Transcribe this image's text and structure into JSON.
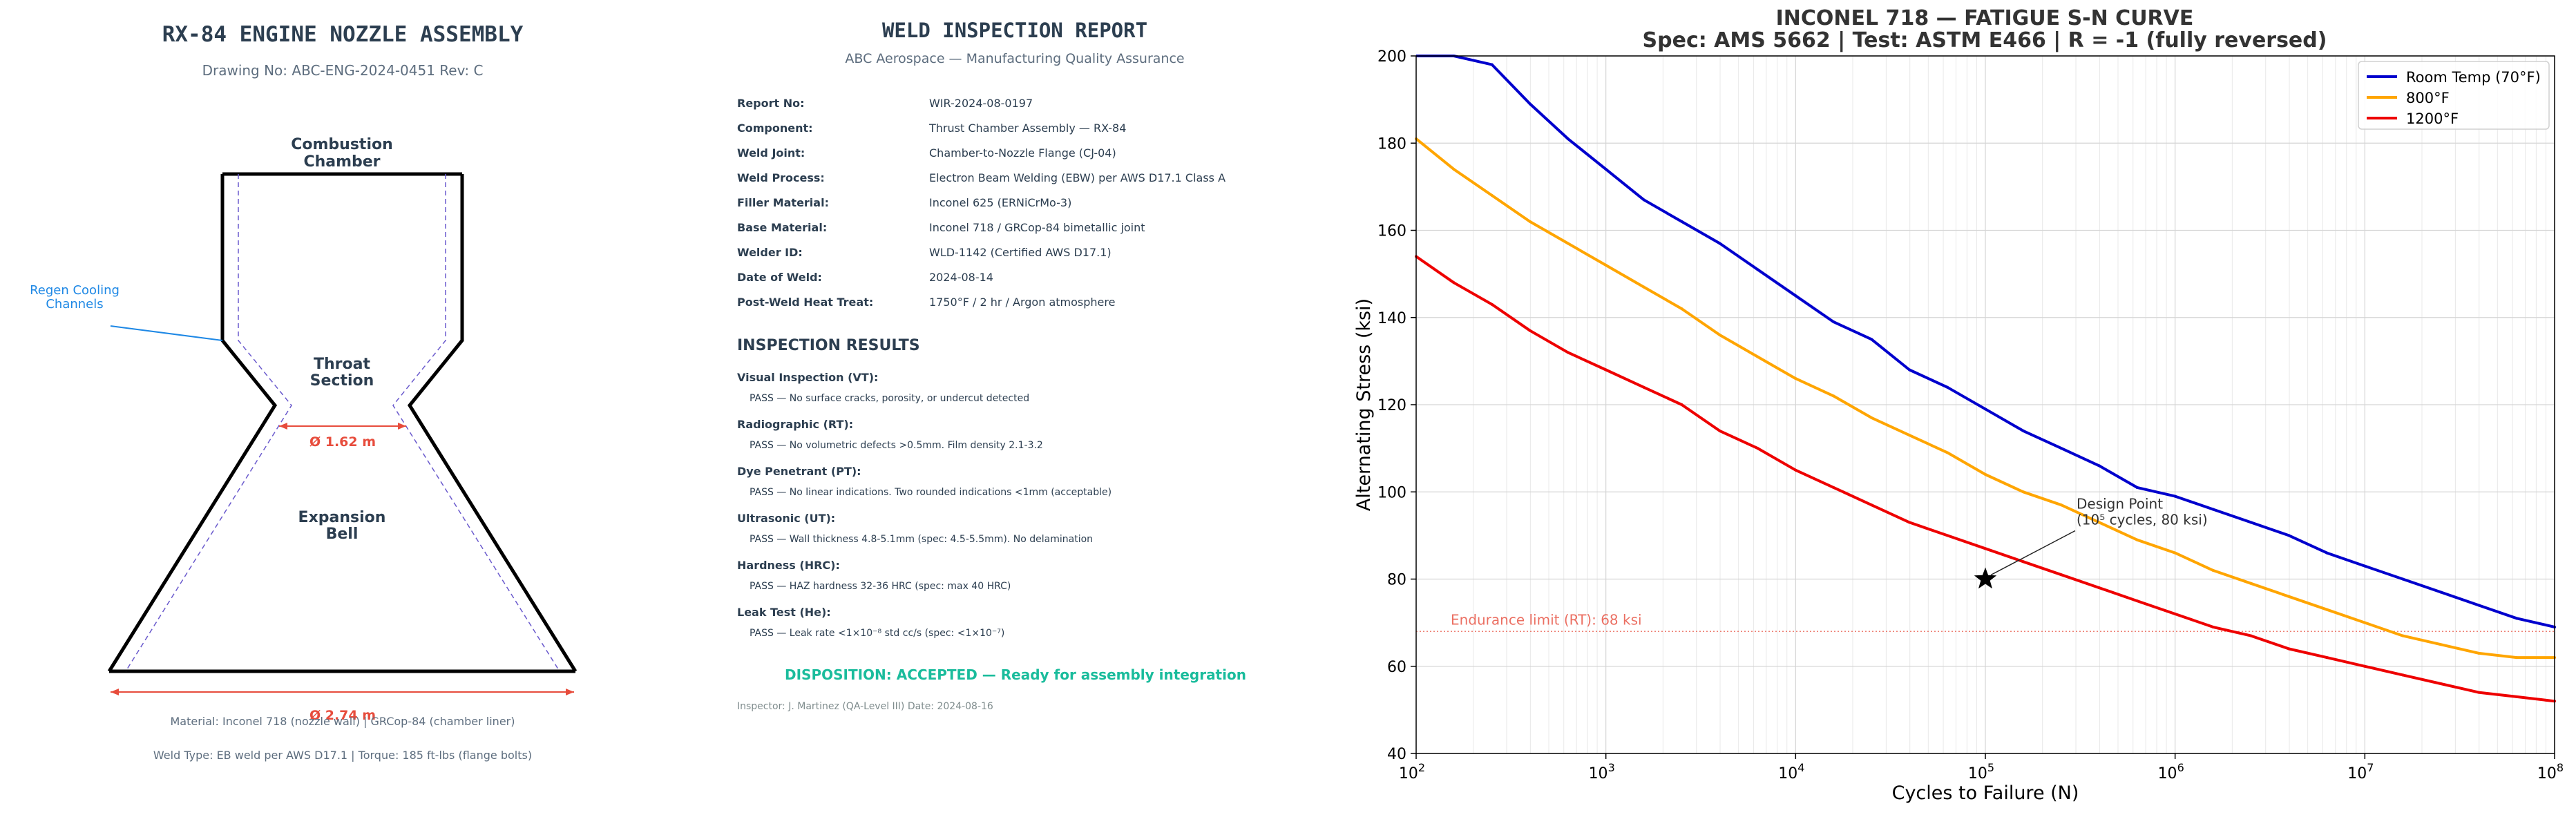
{
  "nozzle": {
    "title": "RX-84 ENGINE NOZZLE ASSEMBLY",
    "drawing_no": "Drawing No: ABC-ENG-2024-0451  Rev: C",
    "labels": {
      "combustion_1": "Combustion",
      "combustion_2": "Chamber",
      "throat_1": "Throat",
      "throat_2": "Section",
      "expansion_1": "Expansion",
      "expansion_2": "Bell",
      "regen_1": "Regen Cooling",
      "regen_2": "Channels"
    },
    "dims": {
      "throat": "Ø 1.62 m",
      "exit": "Ø 2.74 m"
    },
    "material": "Material: Inconel 718 (nozzle wall)  |  GRCop-84 (chamber liner)",
    "weld_type": "Weld Type: EB weld per AWS D17.1  |  Torque: 185 ft-lbs (flange bolts)",
    "colors": {
      "outline": "#000000",
      "dashed": "#6a5acd",
      "dimension": "#e74c3c",
      "regen": "#1e88e5",
      "text": "#2c3e50"
    }
  },
  "report": {
    "title": "WELD INSPECTION REPORT",
    "subtitle": "ABC Aerospace — Manufacturing Quality Assurance",
    "fields": [
      {
        "label": "Report No:",
        "value": "WIR-2024-08-0197"
      },
      {
        "label": "Component:",
        "value": "Thrust Chamber Assembly — RX-84"
      },
      {
        "label": "Weld Joint:",
        "value": "Chamber-to-Nozzle Flange (CJ-04)"
      },
      {
        "label": "Weld Process:",
        "value": "Electron Beam Welding (EBW) per AWS D17.1 Class A"
      },
      {
        "label": "Filler Material:",
        "value": "Inconel 625 (ERNiCrMo-3)"
      },
      {
        "label": "Base Material:",
        "value": "Inconel 718 / GRCop-84 bimetallic joint"
      },
      {
        "label": "Welder ID:",
        "value": "WLD-1142 (Certified AWS D17.1)"
      },
      {
        "label": "Date of Weld:",
        "value": "2024-08-14"
      },
      {
        "label": "Post-Weld Heat Treat:",
        "value": "1750°F / 2 hr / Argon atmosphere"
      }
    ],
    "results_heading": "INSPECTION RESULTS",
    "results": [
      {
        "title": "Visual Inspection (VT):",
        "detail": "PASS — No surface cracks, porosity, or undercut detected"
      },
      {
        "title": "Radiographic (RT):",
        "detail": "PASS — No volumetric defects >0.5mm. Film density 2.1-3.2"
      },
      {
        "title": "Dye Penetrant (PT):",
        "detail": "PASS — No linear indications. Two rounded indications <1mm (acceptable)"
      },
      {
        "title": "Ultrasonic (UT):",
        "detail": "PASS — Wall thickness 4.8-5.1mm (spec: 4.5-5.5mm). No delamination"
      },
      {
        "title": "Hardness (HRC):",
        "detail": "PASS — HAZ hardness 32-36 HRC (spec: max 40 HRC)"
      },
      {
        "title": "Leak Test (He):",
        "detail": "PASS — Leak rate <1×10⁻⁸ std cc/s (spec: <1×10⁻⁷)"
      }
    ],
    "disposition": "DISPOSITION:  ACCEPTED — Ready for assembly integration",
    "inspector": "Inspector: J. Martinez (QA-Level III)    Date: 2024-08-16",
    "colors": {
      "text": "#2c3e50",
      "accept": "#1abc9c"
    }
  },
  "chart_data": {
    "type": "line",
    "title": "INCONEL 718 — FATIGUE S-N CURVE",
    "subtitle": "Spec: AMS 5662  |  Test: ASTM E466  |  R = -1 (fully reversed)",
    "xlabel": "Cycles to Failure (N)",
    "ylabel": "Alternating Stress (ksi)",
    "xscale": "log",
    "xlim": [
      100,
      100000000
    ],
    "ylim": [
      40,
      200
    ],
    "x_ticks": [
      100,
      1000,
      10000,
      100000,
      1000000,
      10000000,
      100000000
    ],
    "x_tick_labels": [
      {
        "base": "10",
        "exp": "2"
      },
      {
        "base": "10",
        "exp": "3"
      },
      {
        "base": "10",
        "exp": "4"
      },
      {
        "base": "10",
        "exp": "5"
      },
      {
        "base": "10",
        "exp": "6"
      },
      {
        "base": "10",
        "exp": "7"
      },
      {
        "base": "10",
        "exp": "8"
      }
    ],
    "y_ticks": [
      40,
      60,
      80,
      100,
      120,
      140,
      160,
      180,
      200
    ],
    "grid": true,
    "legend_position": "top-right",
    "series": [
      {
        "name": "Room Temp (70°F)",
        "color": "#0000cd",
        "x": [
          100,
          158,
          251,
          398,
          631,
          1000,
          1585,
          2512,
          3981,
          6310,
          10000,
          15849,
          25119,
          39811,
          63096,
          100000,
          158489,
          251189,
          398107,
          630957,
          1000000,
          1584893,
          2511886,
          3981072,
          6309573,
          10000000,
          15848932,
          25118864,
          39810717,
          63095734,
          100000000
        ],
        "y": [
          218,
          206,
          198,
          189,
          181,
          174,
          167,
          162,
          157,
          151,
          145,
          139,
          135,
          128,
          124,
          119,
          114,
          110,
          106,
          101,
          99,
          96,
          93,
          90,
          86,
          83,
          80,
          77,
          74,
          71,
          69
        ]
      },
      {
        "name": "800°F",
        "color": "#ffa500",
        "x": [
          100,
          158,
          251,
          398,
          631,
          1000,
          1585,
          2512,
          3981,
          6310,
          10000,
          15849,
          25119,
          39811,
          63096,
          100000,
          158489,
          251189,
          398107,
          630957,
          1000000,
          1584893,
          2511886,
          3981072,
          6309573,
          10000000,
          15848932,
          25118864,
          39810717,
          63095734,
          100000000
        ],
        "y": [
          181,
          174,
          168,
          162,
          157,
          152,
          147,
          142,
          136,
          131,
          126,
          122,
          117,
          113,
          109,
          104,
          100,
          97,
          93,
          89,
          86,
          82,
          79,
          76,
          73,
          70,
          67,
          65,
          63,
          62,
          62
        ]
      },
      {
        "name": "1200°F",
        "color": "#ee0000",
        "x": [
          100,
          158,
          251,
          398,
          631,
          1000,
          1585,
          2512,
          3981,
          6310,
          10000,
          15849,
          25119,
          39811,
          63096,
          100000,
          158489,
          251189,
          398107,
          630957,
          1000000,
          1584893,
          2511886,
          3981072,
          6309573,
          10000000,
          15848932,
          25118864,
          39810717,
          63095734,
          100000000
        ],
        "y": [
          154,
          148,
          143,
          137,
          132,
          128,
          124,
          120,
          114,
          110,
          105,
          101,
          97,
          93,
          90,
          87,
          84,
          81,
          78,
          75,
          72,
          69,
          67,
          64,
          62,
          60,
          58,
          56,
          54,
          53,
          52
        ]
      }
    ],
    "endurance_line": {
      "y": 68,
      "label": "Endurance limit (RT): 68 ksi",
      "color": "#e74c3c"
    },
    "design_point": {
      "x": 100000,
      "y": 80,
      "label_1": "Design Point",
      "label_2": "(10⁵ cycles, 80 ksi)"
    }
  }
}
